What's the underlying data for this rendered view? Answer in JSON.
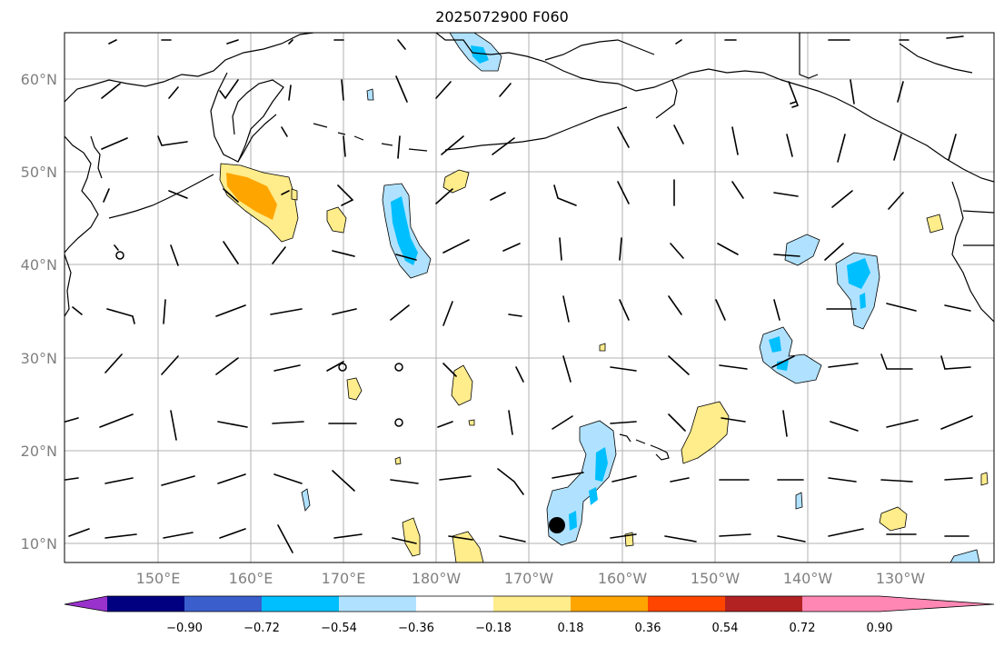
{
  "title": "2025072900 F060",
  "map": {
    "lat_labels": [
      "60°N",
      "50°N",
      "40°N",
      "30°N",
      "20°N",
      "10°N"
    ],
    "lon_labels": [
      "150°E",
      "160°E",
      "170°E",
      "180°W",
      "170°W",
      "160°W",
      "150°W",
      "140°W",
      "130°W"
    ],
    "storm_marker_label": ""
  },
  "colorbar": {
    "labels": [
      "−0.90",
      "−0.72",
      "−0.54",
      "−0.36",
      "−0.18",
      "0.18",
      "0.36",
      "0.54",
      "0.72",
      "0.90"
    ],
    "colors": [
      "#9932CC",
      "#000080",
      "#3A5FCD",
      "#00BFFF",
      "#B0E2FF",
      "#FFFFFF",
      "#FFEC8B",
      "#FFA500",
      "#FF4500",
      "#B22222",
      "#FF87B4"
    ]
  }
}
